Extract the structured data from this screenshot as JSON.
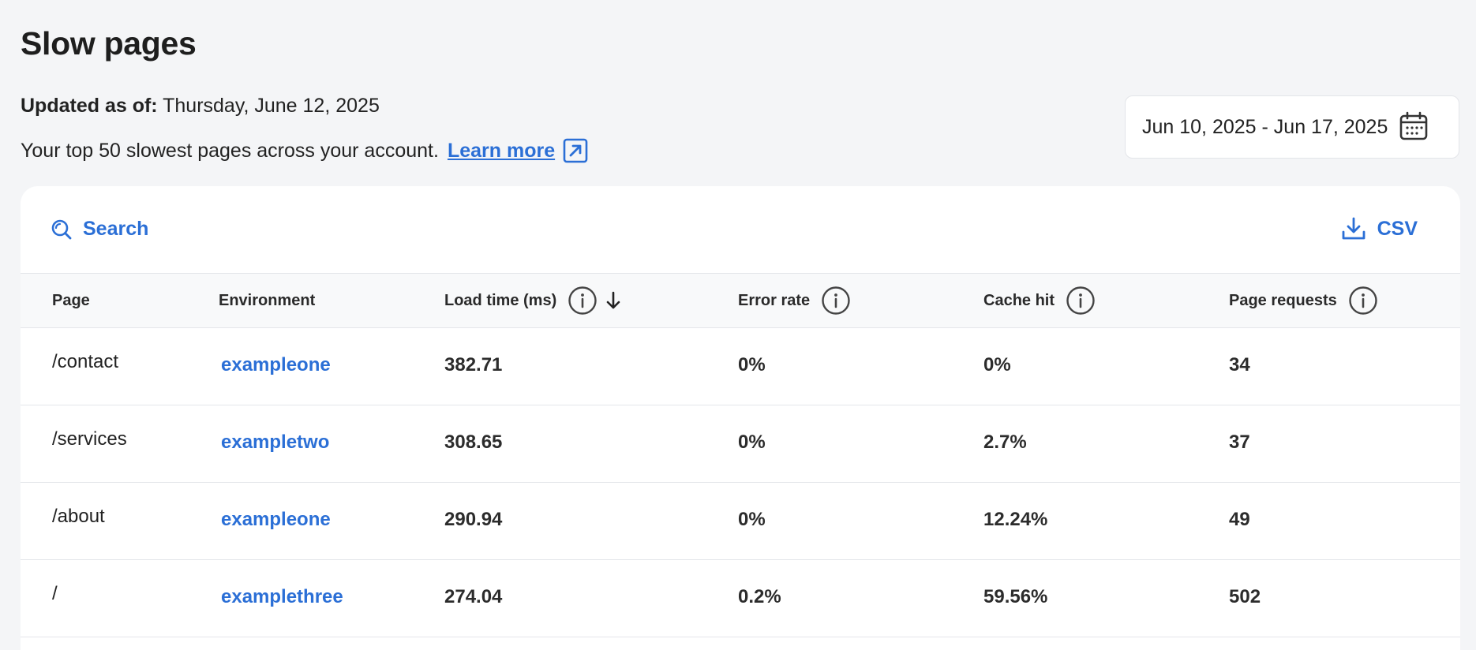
{
  "title": "Slow pages",
  "updated": {
    "label": "Updated as of:",
    "value": "Thursday, June 12, 2025"
  },
  "description": {
    "text": "Your top 50 slowest pages across your account.",
    "link": "Learn more",
    "link_icon": "external-link-icon"
  },
  "date_range": {
    "value": "Jun 10, 2025 - Jun 17, 2025",
    "icon": "calendar-icon"
  },
  "toolbar": {
    "search_label": "Search",
    "csv_label": "CSV"
  },
  "columns": {
    "page": "Page",
    "environment": "Environment",
    "load_time": "Load time (ms)",
    "error_rate": "Error rate",
    "cache_hit": "Cache hit",
    "page_requests": "Page requests"
  },
  "rows": [
    {
      "page": "/contact",
      "environment": "exampleone",
      "load_time": "382.71",
      "error_rate": "0%",
      "cache_hit": "0%",
      "page_requests": "34"
    },
    {
      "page": "/services",
      "environment": "exampletwo",
      "load_time": "308.65",
      "error_rate": "0%",
      "cache_hit": "2.7%",
      "page_requests": "37"
    },
    {
      "page": "/about",
      "environment": "exampleone",
      "load_time": "290.94",
      "error_rate": "0%",
      "cache_hit": "12.24%",
      "page_requests": "49"
    },
    {
      "page": "/",
      "environment": "examplethree",
      "load_time": "274.04",
      "error_rate": "0.2%",
      "cache_hit": "59.56%",
      "page_requests": "502"
    }
  ],
  "colors": {
    "accent": "#2b6fd6",
    "background": "#f4f5f7"
  }
}
